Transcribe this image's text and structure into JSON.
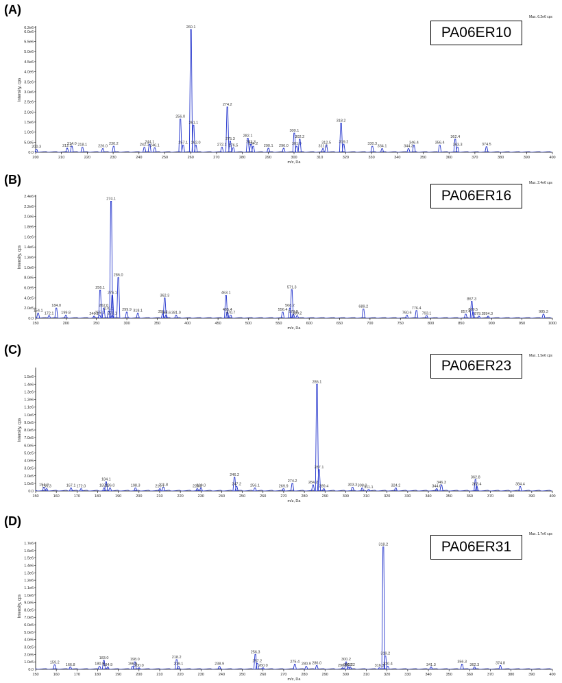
{
  "chart_data": [
    {
      "type": "line",
      "panel_label": "(A)",
      "sample": "PA06ER10",
      "max_text": "Max. 6.2e6 cps",
      "xlabel": "m/z, Da",
      "ylabel": "Intensity, cps",
      "xlim": [
        200,
        400
      ],
      "ylim": [
        0,
        6200000
      ],
      "xticks": [
        200,
        210,
        220,
        230,
        240,
        250,
        260,
        270,
        280,
        290,
        300,
        310,
        320,
        330,
        340,
        350,
        360,
        370,
        380,
        390,
        400
      ],
      "yticks": [
        {
          "value": 500000,
          "label": "5.0e5"
        },
        {
          "value": 1000000,
          "label": "1.0e6"
        },
        {
          "value": 1500000,
          "label": "1.5e6"
        },
        {
          "value": 2000000,
          "label": "2.0e6"
        },
        {
          "value": 2500000,
          "label": "2.5e6"
        },
        {
          "value": 3000000,
          "label": "3.0e6"
        },
        {
          "value": 3500000,
          "label": "3.5e6"
        },
        {
          "value": 4000000,
          "label": "4.0e6"
        },
        {
          "value": 4500000,
          "label": "4.5e6"
        },
        {
          "value": 5000000,
          "label": "5.0e6"
        },
        {
          "value": 5500000,
          "label": "5.5e6"
        },
        {
          "value": 6000000,
          "label": "6.0e6"
        },
        {
          "value": 6200000,
          "label": "6.2e6"
        }
      ],
      "peaks": [
        {
          "x": 200.3,
          "y": 150000,
          "label": "200.3"
        },
        {
          "x": 212.2,
          "y": 200000,
          "label": "212.2"
        },
        {
          "x": 214.0,
          "y": 300000,
          "label": "214.0"
        },
        {
          "x": 218.1,
          "y": 250000,
          "label": "218.1"
        },
        {
          "x": 226.0,
          "y": 180000,
          "label": "226.0"
        },
        {
          "x": 230.2,
          "y": 300000,
          "label": "230.2"
        },
        {
          "x": 242.1,
          "y": 250000,
          "label": "242.1"
        },
        {
          "x": 244.1,
          "y": 400000,
          "label": "244.1"
        },
        {
          "x": 246.1,
          "y": 220000,
          "label": "246.1"
        },
        {
          "x": 256.0,
          "y": 1650000,
          "label": "256.0"
        },
        {
          "x": 257.1,
          "y": 350000,
          "label": "257.1"
        },
        {
          "x": 260.1,
          "y": 6100000,
          "label": "260.1"
        },
        {
          "x": 261.1,
          "y": 1350000,
          "label": "261.1"
        },
        {
          "x": 262.0,
          "y": 350000,
          "label": "262.0"
        },
        {
          "x": 272.1,
          "y": 250000,
          "label": "272.1"
        },
        {
          "x": 274.2,
          "y": 2250000,
          "label": "274.2"
        },
        {
          "x": 275.3,
          "y": 550000,
          "label": "275.3"
        },
        {
          "x": 276.5,
          "y": 220000,
          "label": "276.5"
        },
        {
          "x": 282.1,
          "y": 700000,
          "label": "282.1"
        },
        {
          "x": 284.2,
          "y": 300000,
          "label": "284.2"
        },
        {
          "x": 283.3,
          "y": 400000,
          "label": "283.3"
        },
        {
          "x": 290.1,
          "y": 200000,
          "label": "290.1"
        },
        {
          "x": 296.0,
          "y": 200000,
          "label": "296.0"
        },
        {
          "x": 300.1,
          "y": 950000,
          "label": "300.1"
        },
        {
          "x": 301.0,
          "y": 300000,
          "label": "301.0"
        },
        {
          "x": 302.2,
          "y": 650000,
          "label": "302.2"
        },
        {
          "x": 311.2,
          "y": 180000,
          "label": "311.2"
        },
        {
          "x": 312.5,
          "y": 350000,
          "label": "312.5"
        },
        {
          "x": 318.2,
          "y": 1450000,
          "label": "318.2"
        },
        {
          "x": 319.2,
          "y": 400000,
          "label": "319.2"
        },
        {
          "x": 330.3,
          "y": 300000,
          "label": "330.3"
        },
        {
          "x": 334.1,
          "y": 180000,
          "label": "334.1"
        },
        {
          "x": 344.3,
          "y": 180000,
          "label": "344.3"
        },
        {
          "x": 346.4,
          "y": 350000,
          "label": "346.4"
        },
        {
          "x": 356.4,
          "y": 350000,
          "label": "356.4"
        },
        {
          "x": 362.4,
          "y": 650000,
          "label": "362.4"
        },
        {
          "x": 363.3,
          "y": 250000,
          "label": "363.3"
        },
        {
          "x": 374.5,
          "y": 280000,
          "label": "374.5"
        }
      ]
    },
    {
      "type": "line",
      "panel_label": "(B)",
      "sample": "PA06ER16",
      "max_text": "Max. 2.4e6 cps",
      "xlabel": "m/z, Da",
      "ylabel": "Intensity, cps",
      "xlim": [
        150,
        1000
      ],
      "ylim": [
        0,
        2400000
      ],
      "xticks": [
        150,
        200,
        250,
        300,
        350,
        400,
        450,
        500,
        550,
        600,
        650,
        700,
        750,
        800,
        850,
        900,
        950,
        1000
      ],
      "yticks": [
        {
          "value": 200000,
          "label": "2.0e5"
        },
        {
          "value": 400000,
          "label": "4.0e5"
        },
        {
          "value": 600000,
          "label": "6.0e5"
        },
        {
          "value": 800000,
          "label": "8.0e5"
        },
        {
          "value": 1000000,
          "label": "1.0e6"
        },
        {
          "value": 1200000,
          "label": "1.2e6"
        },
        {
          "value": 1400000,
          "label": "1.4e6"
        },
        {
          "value": 1600000,
          "label": "1.6e6"
        },
        {
          "value": 1800000,
          "label": "1.8e6"
        },
        {
          "value": 2000000,
          "label": "2.0e6"
        },
        {
          "value": 2200000,
          "label": "2.2e6"
        },
        {
          "value": 2400000,
          "label": "2.4e6"
        }
      ],
      "peaks": [
        {
          "x": 154.1,
          "y": 100000,
          "label": "154.1"
        },
        {
          "x": 172.1,
          "y": 50000,
          "label": "172.1"
        },
        {
          "x": 184.0,
          "y": 200000,
          "label": "184.0"
        },
        {
          "x": 199.8,
          "y": 60000,
          "label": "199.8"
        },
        {
          "x": 246.1,
          "y": 40000,
          "label": "246.1"
        },
        {
          "x": 255.1,
          "y": 60000,
          "label": "255.1"
        },
        {
          "x": 256.1,
          "y": 550000,
          "label": "256.1"
        },
        {
          "x": 262.0,
          "y": 200000,
          "label": "262.0"
        },
        {
          "x": 270.1,
          "y": 140000,
          "label": "270.1"
        },
        {
          "x": 274.1,
          "y": 2300000,
          "label": "274.1"
        },
        {
          "x": 276.1,
          "y": 50000,
          "label": "276.1"
        },
        {
          "x": 276.1,
          "y": 450000,
          "label": "276.1"
        },
        {
          "x": 286.0,
          "y": 800000,
          "label": "286.0"
        },
        {
          "x": 299.9,
          "y": 120000,
          "label": "299.9"
        },
        {
          "x": 318.1,
          "y": 100000,
          "label": "318.1"
        },
        {
          "x": 359.0,
          "y": 80000,
          "label": "359.0"
        },
        {
          "x": 362.3,
          "y": 400000,
          "label": "362.3"
        },
        {
          "x": 364.6,
          "y": 60000,
          "label": "364.6"
        },
        {
          "x": 381.0,
          "y": 60000,
          "label": "381.0"
        },
        {
          "x": 463.1,
          "y": 450000,
          "label": "463.1"
        },
        {
          "x": 465.4,
          "y": 120000,
          "label": "465.4"
        },
        {
          "x": 470.7,
          "y": 60000,
          "label": "470.7"
        },
        {
          "x": 556.4,
          "y": 120000,
          "label": "556.4"
        },
        {
          "x": 568.2,
          "y": 200000,
          "label": "568.2"
        },
        {
          "x": 571.3,
          "y": 560000,
          "label": "571.3"
        },
        {
          "x": 573.8,
          "y": 80000,
          "label": "573.8"
        },
        {
          "x": 580.2,
          "y": 50000,
          "label": "580.2"
        },
        {
          "x": 689.2,
          "y": 180000,
          "label": "689.2"
        },
        {
          "x": 760.6,
          "y": 60000,
          "label": "760.6"
        },
        {
          "x": 776.4,
          "y": 150000,
          "label": "776.4"
        },
        {
          "x": 793.1,
          "y": 50000,
          "label": "793.1"
        },
        {
          "x": 857.4,
          "y": 80000,
          "label": "857.4"
        },
        {
          "x": 867.3,
          "y": 330000,
          "label": "867.3"
        },
        {
          "x": 869.5,
          "y": 120000,
          "label": "869.5"
        },
        {
          "x": 879.2,
          "y": 40000,
          "label": "879.2"
        },
        {
          "x": 894.3,
          "y": 40000,
          "label": "894.3"
        },
        {
          "x": 985.3,
          "y": 80000,
          "label": "985.3"
        }
      ]
    },
    {
      "type": "line",
      "panel_label": "(C)",
      "sample": "PA06ER23",
      "max_text": "Max. 1.5e6 cps",
      "xlabel": "m/z, Da",
      "ylabel": "Intensity, cps",
      "xlim": [
        150,
        400
      ],
      "ylim": [
        0,
        1600000
      ],
      "xticks": [
        150,
        160,
        170,
        180,
        190,
        200,
        210,
        220,
        230,
        240,
        250,
        260,
        270,
        280,
        290,
        300,
        310,
        320,
        330,
        340,
        350,
        360,
        370,
        380,
        390,
        400
      ],
      "yticks": [
        {
          "value": 100000,
          "label": "1.0e5"
        },
        {
          "value": 200000,
          "label": "2.0e5"
        },
        {
          "value": 300000,
          "label": "3.0e5"
        },
        {
          "value": 400000,
          "label": "4.0e5"
        },
        {
          "value": 500000,
          "label": "5.0e5"
        },
        {
          "value": 600000,
          "label": "6.0e5"
        },
        {
          "value": 700000,
          "label": "7.0e5"
        },
        {
          "value": 800000,
          "label": "8.0e5"
        },
        {
          "value": 900000,
          "label": "9.0e5"
        },
        {
          "value": 1000000,
          "label": "1.0e6"
        },
        {
          "value": 1100000,
          "label": "1.1e6"
        },
        {
          "value": 1200000,
          "label": "1.2e6"
        },
        {
          "value": 1300000,
          "label": "1.3e6"
        },
        {
          "value": 1400000,
          "label": "1.4e6"
        },
        {
          "value": 1500000,
          "label": "1.5e6"
        }
      ],
      "peaks": [
        {
          "x": 154.0,
          "y": 50000,
          "label": "154.0"
        },
        {
          "x": 155.3,
          "y": 30000,
          "label": "155.3"
        },
        {
          "x": 167.1,
          "y": 40000,
          "label": "167.1"
        },
        {
          "x": 172.0,
          "y": 30000,
          "label": "172.0"
        },
        {
          "x": 184.1,
          "y": 120000,
          "label": "184.1"
        },
        {
          "x": 183.1,
          "y": 40000,
          "label": "183.1"
        },
        {
          "x": 186.0,
          "y": 40000,
          "label": "186.0"
        },
        {
          "x": 198.3,
          "y": 40000,
          "label": "198.3"
        },
        {
          "x": 210.1,
          "y": 30000,
          "label": "210.1"
        },
        {
          "x": 211.8,
          "y": 50000,
          "label": "211.8"
        },
        {
          "x": 228.2,
          "y": 30000,
          "label": "228.2"
        },
        {
          "x": 230.0,
          "y": 40000,
          "label": "230.0"
        },
        {
          "x": 246.2,
          "y": 180000,
          "label": "246.2"
        },
        {
          "x": 247.2,
          "y": 60000,
          "label": "247.2"
        },
        {
          "x": 256.1,
          "y": 40000,
          "label": "256.1"
        },
        {
          "x": 269.9,
          "y": 30000,
          "label": "269.9"
        },
        {
          "x": 274.2,
          "y": 100000,
          "label": "274.2"
        },
        {
          "x": 284.2,
          "y": 80000,
          "label": "284.2"
        },
        {
          "x": 286.1,
          "y": 1400000,
          "label": "286.1"
        },
        {
          "x": 287.1,
          "y": 280000,
          "label": "287.1"
        },
        {
          "x": 289.4,
          "y": 30000,
          "label": "289.4"
        },
        {
          "x": 303.3,
          "y": 50000,
          "label": "303.3"
        },
        {
          "x": 308.0,
          "y": 40000,
          "label": "308.0"
        },
        {
          "x": 311.1,
          "y": 20000,
          "label": "311.1"
        },
        {
          "x": 324.2,
          "y": 40000,
          "label": "324.2"
        },
        {
          "x": 344.0,
          "y": 30000,
          "label": "344.0"
        },
        {
          "x": 346.3,
          "y": 80000,
          "label": "346.3"
        },
        {
          "x": 362.8,
          "y": 150000,
          "label": "362.8"
        },
        {
          "x": 363.4,
          "y": 60000,
          "label": "363.4"
        },
        {
          "x": 384.4,
          "y": 60000,
          "label": "384.4"
        }
      ]
    },
    {
      "type": "line",
      "panel_label": "(D)",
      "sample": "PA06ER31",
      "max_text": "Max. 1.7e6 cps",
      "xlabel": "m/z, Da",
      "ylabel": "Intensity, cps",
      "xlim": [
        150,
        400
      ],
      "ylim": [
        0,
        1700000
      ],
      "xticks": [
        150,
        160,
        170,
        180,
        190,
        200,
        210,
        220,
        230,
        240,
        250,
        260,
        270,
        280,
        290,
        300,
        310,
        320,
        330,
        340,
        350,
        360,
        370,
        380,
        390,
        400
      ],
      "yticks": [
        {
          "value": 100000,
          "label": "1.0e5"
        },
        {
          "value": 200000,
          "label": "2.0e5"
        },
        {
          "value": 300000,
          "label": "3.0e5"
        },
        {
          "value": 400000,
          "label": "4.0e5"
        },
        {
          "value": 500000,
          "label": "5.0e5"
        },
        {
          "value": 600000,
          "label": "6.0e5"
        },
        {
          "value": 700000,
          "label": "7.0e5"
        },
        {
          "value": 800000,
          "label": "8.0e5"
        },
        {
          "value": 900000,
          "label": "9.0e5"
        },
        {
          "value": 1000000,
          "label": "1.0e6"
        },
        {
          "value": 1100000,
          "label": "1.1e6"
        },
        {
          "value": 1200000,
          "label": "1.2e6"
        },
        {
          "value": 1300000,
          "label": "1.3e6"
        },
        {
          "value": 1400000,
          "label": "1.4e6"
        },
        {
          "value": 1500000,
          "label": "1.5e6"
        },
        {
          "value": 1600000,
          "label": "1.6e6"
        },
        {
          "value": 1700000,
          "label": "1.7e6"
        }
      ],
      "peaks": [
        {
          "x": 159.2,
          "y": 60000,
          "label": "159.2"
        },
        {
          "x": 166.8,
          "y": 30000,
          "label": "166.8"
        },
        {
          "x": 183.0,
          "y": 120000,
          "label": "183.0"
        },
        {
          "x": 180.9,
          "y": 40000,
          "label": "180.9"
        },
        {
          "x": 184.9,
          "y": 30000,
          "label": "184.9"
        },
        {
          "x": 198.0,
          "y": 100000,
          "label": "198.0"
        },
        {
          "x": 196.9,
          "y": 40000,
          "label": "196.9"
        },
        {
          "x": 200.0,
          "y": 20000,
          "label": "200.0"
        },
        {
          "x": 218.2,
          "y": 130000,
          "label": "218.2"
        },
        {
          "x": 219.1,
          "y": 40000,
          "label": "219.1"
        },
        {
          "x": 238.9,
          "y": 40000,
          "label": "238.9"
        },
        {
          "x": 256.3,
          "y": 200000,
          "label": "256.3"
        },
        {
          "x": 257.2,
          "y": 80000,
          "label": "257.2"
        },
        {
          "x": 260.0,
          "y": 20000,
          "label": "260.0"
        },
        {
          "x": 275.4,
          "y": 70000,
          "label": "275.4"
        },
        {
          "x": 280.9,
          "y": 40000,
          "label": "280.9"
        },
        {
          "x": 286.0,
          "y": 50000,
          "label": "286.0"
        },
        {
          "x": 298.5,
          "y": 20000,
          "label": "298.5"
        },
        {
          "x": 300.2,
          "y": 100000,
          "label": "300.2"
        },
        {
          "x": 301.2,
          "y": 30000,
          "label": "301.2"
        },
        {
          "x": 302.2,
          "y": 30000,
          "label": "302.2"
        },
        {
          "x": 316.3,
          "y": 20000,
          "label": "316.3"
        },
        {
          "x": 318.2,
          "y": 1650000,
          "label": "318.2"
        },
        {
          "x": 319.2,
          "y": 180000,
          "label": "319.2"
        },
        {
          "x": 320.4,
          "y": 40000,
          "label": "320.4"
        },
        {
          "x": 341.3,
          "y": 30000,
          "label": "341.3"
        },
        {
          "x": 356.3,
          "y": 70000,
          "label": "356.3"
        },
        {
          "x": 362.3,
          "y": 30000,
          "label": "362.3"
        },
        {
          "x": 374.8,
          "y": 50000,
          "label": "374.8"
        }
      ]
    }
  ]
}
